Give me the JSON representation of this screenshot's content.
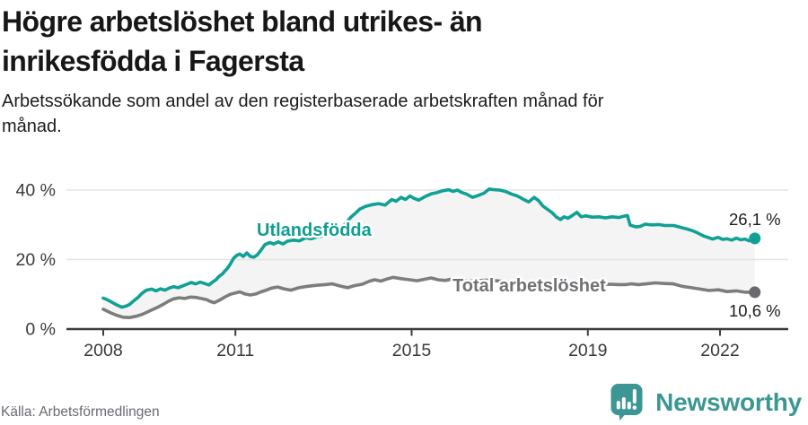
{
  "header": {
    "title_lines": [
      "Högre arbetslöshet bland utrikes- än",
      "inrikesfödda i Fagersta"
    ],
    "subtitle_lines": [
      "Arbetssökande som andel av den registerbaserade arbetskraften månad för",
      "månad."
    ]
  },
  "footer": {
    "source": "Källa: Arbetsförmedlingen",
    "brand": "Newsworthy"
  },
  "colors": {
    "teal_line": "#10a095",
    "teal_label": "#0f9e92",
    "gray_line": "#7d7d7d",
    "gray_label": "#717176",
    "gray_dot": "#69696e",
    "grid": "#e3e3e3",
    "axis": "#3d3d3d",
    "fill_between": "#f4f4f4",
    "brand_teal": "#3c9693",
    "end_label_text": "#1c1c1c"
  },
  "chart_data": {
    "type": "line",
    "title": "Högre arbetslöshet bland utrikes- än inrikesfödda i Fagersta",
    "subtitle": "Arbetssökande som andel av den registerbaserade arbetskraften månad för månad.",
    "source": "Källa: Arbetsförmedlingen",
    "unit": "%",
    "grid": "horizontal",
    "xlim": [
      2007.2,
      2023.5
    ],
    "ylim": [
      0,
      43
    ],
    "x_ticks": [
      {
        "value": 2008,
        "label": "2008"
      },
      {
        "value": 2011,
        "label": "2011"
      },
      {
        "value": 2015,
        "label": "2015"
      },
      {
        "value": 2019,
        "label": "2019"
      },
      {
        "value": 2022,
        "label": "2022"
      }
    ],
    "y_ticks": [
      {
        "value": 0,
        "label": "0 %"
      },
      {
        "value": 20,
        "label": "20 %"
      },
      {
        "value": 40,
        "label": "40 %"
      }
    ],
    "fill_between_series": true,
    "series": [
      {
        "id": "utlandsfodda",
        "name": "Utlandsfödda",
        "color": "#10a095",
        "label_color": "#0f9e92",
        "dot_color": "#10a095",
        "end_label": "26,1 %",
        "end_value": 26.1,
        "points": [
          [
            2008.0,
            8.9
          ],
          [
            2008.1,
            8.4
          ],
          [
            2008.2,
            7.7
          ],
          [
            2008.3,
            7.0
          ],
          [
            2008.42,
            6.3
          ],
          [
            2008.52,
            6.6
          ],
          [
            2008.6,
            7.1
          ],
          [
            2008.7,
            8.2
          ],
          [
            2008.78,
            9.0
          ],
          [
            2008.88,
            10.3
          ],
          [
            2008.98,
            11.2
          ],
          [
            2009.1,
            11.5
          ],
          [
            2009.2,
            11.0
          ],
          [
            2009.3,
            11.6
          ],
          [
            2009.4,
            11.2
          ],
          [
            2009.5,
            11.8
          ],
          [
            2009.6,
            12.2
          ],
          [
            2009.7,
            11.9
          ],
          [
            2009.8,
            12.4
          ],
          [
            2009.9,
            12.9
          ],
          [
            2010.0,
            13.4
          ],
          [
            2010.1,
            13.0
          ],
          [
            2010.2,
            13.5
          ],
          [
            2010.3,
            13.1
          ],
          [
            2010.4,
            12.7
          ],
          [
            2010.49,
            13.6
          ],
          [
            2010.56,
            14.2
          ],
          [
            2010.63,
            15.2
          ],
          [
            2010.7,
            15.8
          ],
          [
            2010.76,
            16.7
          ],
          [
            2010.82,
            17.5
          ],
          [
            2010.89,
            18.8
          ],
          [
            2010.96,
            20.4
          ],
          [
            2011.03,
            21.2
          ],
          [
            2011.1,
            21.6
          ],
          [
            2011.18,
            20.9
          ],
          [
            2011.26,
            21.9
          ],
          [
            2011.34,
            20.9
          ],
          [
            2011.42,
            20.7
          ],
          [
            2011.5,
            21.4
          ],
          [
            2011.58,
            22.7
          ],
          [
            2011.67,
            24.3
          ],
          [
            2011.78,
            24.9
          ],
          [
            2011.87,
            24.5
          ],
          [
            2011.97,
            25.1
          ],
          [
            2012.08,
            24.5
          ],
          [
            2012.18,
            25.3
          ],
          [
            2012.32,
            25.6
          ],
          [
            2012.45,
            25.4
          ],
          [
            2012.6,
            26.3
          ],
          [
            2012.72,
            26.0
          ],
          [
            2012.85,
            26.5
          ],
          [
            2013.0,
            26.9
          ],
          [
            2013.15,
            27.3
          ],
          [
            2013.3,
            28.1
          ],
          [
            2013.42,
            29.3
          ],
          [
            2013.52,
            30.7
          ],
          [
            2013.62,
            32.2
          ],
          [
            2013.72,
            33.3
          ],
          [
            2013.82,
            34.5
          ],
          [
            2013.95,
            35.3
          ],
          [
            2014.1,
            35.8
          ],
          [
            2014.25,
            36.1
          ],
          [
            2014.4,
            35.7
          ],
          [
            2014.55,
            37.3
          ],
          [
            2014.65,
            36.8
          ],
          [
            2014.76,
            37.9
          ],
          [
            2014.86,
            37.3
          ],
          [
            2014.96,
            38.3
          ],
          [
            2015.06,
            37.6
          ],
          [
            2015.16,
            37.1
          ],
          [
            2015.3,
            38.1
          ],
          [
            2015.44,
            38.9
          ],
          [
            2015.58,
            39.3
          ],
          [
            2015.7,
            39.8
          ],
          [
            2015.84,
            40.1
          ],
          [
            2015.94,
            39.6
          ],
          [
            2016.04,
            40.0
          ],
          [
            2016.14,
            39.3
          ],
          [
            2016.24,
            38.9
          ],
          [
            2016.38,
            37.9
          ],
          [
            2016.5,
            38.4
          ],
          [
            2016.64,
            39.1
          ],
          [
            2016.76,
            40.3
          ],
          [
            2016.88,
            40.1
          ],
          [
            2017.0,
            40.0
          ],
          [
            2017.13,
            39.6
          ],
          [
            2017.26,
            38.9
          ],
          [
            2017.4,
            38.3
          ],
          [
            2017.53,
            37.4
          ],
          [
            2017.66,
            36.6
          ],
          [
            2017.78,
            37.9
          ],
          [
            2017.88,
            37.0
          ],
          [
            2017.98,
            35.4
          ],
          [
            2018.08,
            34.5
          ],
          [
            2018.18,
            33.6
          ],
          [
            2018.28,
            32.3
          ],
          [
            2018.38,
            31.5
          ],
          [
            2018.46,
            32.3
          ],
          [
            2018.55,
            31.9
          ],
          [
            2018.65,
            32.7
          ],
          [
            2018.75,
            33.6
          ],
          [
            2018.85,
            32.3
          ],
          [
            2018.95,
            32.6
          ],
          [
            2019.1,
            32.2
          ],
          [
            2019.25,
            32.3
          ],
          [
            2019.4,
            32.0
          ],
          [
            2019.55,
            32.3
          ],
          [
            2019.7,
            32.1
          ],
          [
            2019.82,
            32.5
          ],
          [
            2019.9,
            32.7
          ],
          [
            2019.96,
            29.9
          ],
          [
            2020.1,
            29.4
          ],
          [
            2020.2,
            29.6
          ],
          [
            2020.3,
            30.2
          ],
          [
            2020.45,
            30.0
          ],
          [
            2020.6,
            30.1
          ],
          [
            2020.75,
            29.8
          ],
          [
            2020.95,
            29.8
          ],
          [
            2021.1,
            29.3
          ],
          [
            2021.25,
            28.8
          ],
          [
            2021.4,
            28.2
          ],
          [
            2021.52,
            27.5
          ],
          [
            2021.62,
            26.8
          ],
          [
            2021.72,
            26.4
          ],
          [
            2021.83,
            25.9
          ],
          [
            2021.96,
            26.4
          ],
          [
            2022.06,
            25.8
          ],
          [
            2022.16,
            26.0
          ],
          [
            2022.27,
            25.6
          ],
          [
            2022.37,
            26.2
          ],
          [
            2022.47,
            25.7
          ],
          [
            2022.57,
            25.9
          ],
          [
            2022.66,
            25.4
          ],
          [
            2022.79,
            26.1
          ]
        ]
      },
      {
        "id": "total",
        "name": "Total arbetslöshet",
        "color": "#7d7d7d",
        "label_color": "#717176",
        "dot_color": "#69696e",
        "end_label": "10,6 %",
        "end_value": 10.6,
        "points": [
          [
            2008.0,
            5.7
          ],
          [
            2008.1,
            5.1
          ],
          [
            2008.2,
            4.5
          ],
          [
            2008.32,
            3.9
          ],
          [
            2008.45,
            3.4
          ],
          [
            2008.6,
            3.3
          ],
          [
            2008.75,
            3.7
          ],
          [
            2008.88,
            4.2
          ],
          [
            2009.0,
            4.9
          ],
          [
            2009.12,
            5.6
          ],
          [
            2009.24,
            6.3
          ],
          [
            2009.36,
            7.1
          ],
          [
            2009.48,
            8.0
          ],
          [
            2009.6,
            8.7
          ],
          [
            2009.72,
            9.0
          ],
          [
            2009.85,
            8.8
          ],
          [
            2009.98,
            9.2
          ],
          [
            2010.1,
            9.1
          ],
          [
            2010.22,
            8.8
          ],
          [
            2010.34,
            8.5
          ],
          [
            2010.44,
            7.9
          ],
          [
            2010.52,
            7.6
          ],
          [
            2010.64,
            8.3
          ],
          [
            2010.76,
            9.2
          ],
          [
            2010.88,
            10.0
          ],
          [
            2011.0,
            10.4
          ],
          [
            2011.1,
            10.7
          ],
          [
            2011.22,
            10.1
          ],
          [
            2011.34,
            9.8
          ],
          [
            2011.46,
            10.1
          ],
          [
            2011.58,
            10.7
          ],
          [
            2011.7,
            11.2
          ],
          [
            2011.82,
            11.8
          ],
          [
            2011.96,
            12.1
          ],
          [
            2012.1,
            11.6
          ],
          [
            2012.26,
            11.2
          ],
          [
            2012.44,
            11.9
          ],
          [
            2012.64,
            12.3
          ],
          [
            2012.84,
            12.6
          ],
          [
            2013.04,
            12.8
          ],
          [
            2013.2,
            13.0
          ],
          [
            2013.4,
            12.3
          ],
          [
            2013.55,
            11.9
          ],
          [
            2013.7,
            12.5
          ],
          [
            2013.88,
            12.9
          ],
          [
            2014.05,
            13.8
          ],
          [
            2014.16,
            14.2
          ],
          [
            2014.3,
            13.8
          ],
          [
            2014.44,
            14.4
          ],
          [
            2014.58,
            14.9
          ],
          [
            2014.76,
            14.5
          ],
          [
            2014.96,
            14.2
          ],
          [
            2015.12,
            13.9
          ],
          [
            2015.28,
            14.3
          ],
          [
            2015.44,
            14.7
          ],
          [
            2015.6,
            14.2
          ],
          [
            2015.76,
            14.0
          ],
          [
            2015.92,
            14.4
          ],
          [
            2016.1,
            14.2
          ],
          [
            2016.3,
            13.8
          ],
          [
            2016.5,
            13.9
          ],
          [
            2016.7,
            14.1
          ],
          [
            2016.9,
            13.9
          ],
          [
            2017.1,
            13.7
          ],
          [
            2017.3,
            13.5
          ],
          [
            2017.5,
            13.4
          ],
          [
            2017.7,
            13.3
          ],
          [
            2017.9,
            13.4
          ],
          [
            2018.1,
            13.1
          ],
          [
            2018.3,
            12.9
          ],
          [
            2018.5,
            12.8
          ],
          [
            2018.7,
            13.0
          ],
          [
            2018.9,
            13.1
          ],
          [
            2019.1,
            12.9
          ],
          [
            2019.3,
            12.8
          ],
          [
            2019.5,
            12.9
          ],
          [
            2019.7,
            12.8
          ],
          [
            2019.86,
            12.8
          ],
          [
            2019.98,
            13.0
          ],
          [
            2020.15,
            12.8
          ],
          [
            2020.33,
            13.0
          ],
          [
            2020.53,
            13.3
          ],
          [
            2020.74,
            13.1
          ],
          [
            2020.94,
            13.0
          ],
          [
            2021.14,
            12.3
          ],
          [
            2021.35,
            11.9
          ],
          [
            2021.55,
            11.5
          ],
          [
            2021.75,
            11.1
          ],
          [
            2021.96,
            11.3
          ],
          [
            2022.16,
            10.8
          ],
          [
            2022.37,
            11.0
          ],
          [
            2022.57,
            10.6
          ],
          [
            2022.79,
            10.6
          ]
        ]
      }
    ]
  }
}
